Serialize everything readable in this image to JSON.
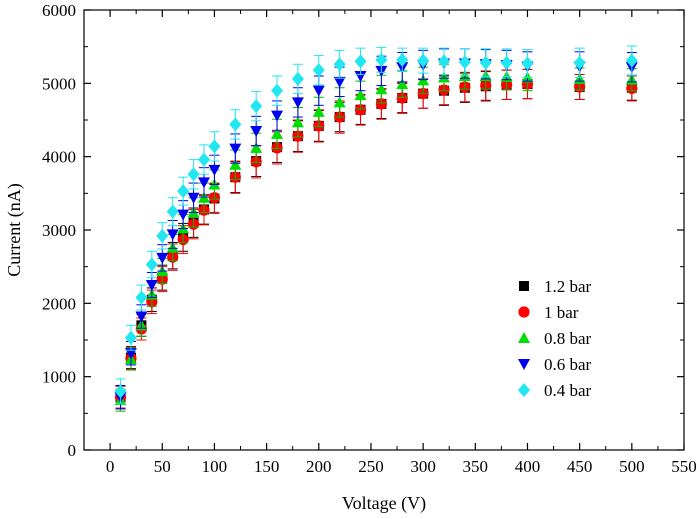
{
  "chart_data": {
    "type": "scatter",
    "title": "",
    "xlabel": "Voltage (V)",
    "ylabel": "Current (nA)",
    "xlim": [
      -25,
      550
    ],
    "ylim": [
      0,
      6000
    ],
    "x_ticks": [
      0,
      50,
      100,
      150,
      200,
      250,
      300,
      350,
      400,
      450,
      500,
      550
    ],
    "y_ticks": [
      0,
      1000,
      2000,
      3000,
      4000,
      5000,
      6000
    ],
    "grid": false,
    "legend_position": "lower-right",
    "error_bars": true,
    "x": [
      10,
      20,
      30,
      40,
      50,
      60,
      70,
      80,
      90,
      100,
      120,
      140,
      160,
      180,
      200,
      220,
      240,
      260,
      280,
      300,
      320,
      340,
      360,
      380,
      400,
      450,
      500
    ],
    "series": [
      {
        "name": "1.2 bar",
        "marker": "square",
        "color": "#000000",
        "error_color": "#000000",
        "values": [
          720,
          1260,
          1700,
          2050,
          2350,
          2650,
          2900,
          3100,
          3280,
          3430,
          3720,
          3940,
          4130,
          4280,
          4420,
          4540,
          4640,
          4720,
          4800,
          4860,
          4900,
          4940,
          4960,
          4980,
          4990,
          4950,
          4940
        ],
        "errors": [
          150,
          150,
          150,
          160,
          170,
          180,
          190,
          200,
          200,
          200,
          210,
          210,
          210,
          210,
          210,
          200,
          200,
          200,
          200,
          200,
          200,
          200,
          200,
          200,
          200,
          170,
          170
        ]
      },
      {
        "name": "1 bar",
        "marker": "circle",
        "color": "#ff0000",
        "error_color": "#ff0000",
        "values": [
          720,
          1250,
          1650,
          2020,
          2330,
          2630,
          2870,
          3080,
          3270,
          3440,
          3720,
          3930,
          4120,
          4280,
          4420,
          4540,
          4640,
          4720,
          4800,
          4860,
          4910,
          4950,
          4970,
          4980,
          4990,
          4950,
          4930
        ],
        "errors": [
          150,
          150,
          150,
          160,
          170,
          180,
          190,
          200,
          200,
          200,
          220,
          220,
          220,
          220,
          220,
          220,
          210,
          210,
          210,
          200,
          200,
          200,
          200,
          200,
          200,
          170,
          170
        ]
      },
      {
        "name": "0.8 bar",
        "marker": "triangle-up",
        "color": "#00dd00",
        "error_color": "#00bb00",
        "values": [
          680,
          1240,
          1700,
          2120,
          2440,
          2760,
          3020,
          3240,
          3440,
          3620,
          3890,
          4120,
          4310,
          4470,
          4610,
          4740,
          4840,
          4920,
          4990,
          5040,
          5080,
          5100,
          5100,
          5090,
          5080,
          5060,
          5050
        ],
        "errors": [
          150,
          150,
          150,
          160,
          170,
          180,
          190,
          200,
          200,
          200,
          200,
          200,
          200,
          200,
          200,
          200,
          190,
          190,
          180,
          180,
          180,
          180,
          180,
          180,
          180,
          150,
          150
        ]
      },
      {
        "name": "0.6 bar",
        "marker": "triangle-down",
        "color": "#0000ee",
        "error_color": "#0000ee",
        "values": [
          720,
          1320,
          1820,
          2250,
          2620,
          2940,
          3210,
          3440,
          3650,
          3820,
          4110,
          4350,
          4560,
          4740,
          4900,
          5020,
          5100,
          5170,
          5220,
          5250,
          5270,
          5270,
          5260,
          5250,
          5230,
          5230,
          5220
        ],
        "errors": [
          160,
          160,
          160,
          170,
          180,
          190,
          190,
          200,
          200,
          200,
          200,
          200,
          200,
          200,
          200,
          200,
          200,
          200,
          200,
          200,
          200,
          200,
          200,
          200,
          200,
          200,
          200
        ]
      },
      {
        "name": "0.4 bar",
        "marker": "diamond",
        "color": "#22e6f0",
        "error_color": "#22e6f0",
        "values": [
          800,
          1530,
          2080,
          2530,
          2920,
          3250,
          3530,
          3760,
          3960,
          4140,
          4440,
          4690,
          4900,
          5060,
          5180,
          5260,
          5300,
          5320,
          5320,
          5310,
          5300,
          5290,
          5280,
          5280,
          5270,
          5280,
          5310
        ],
        "errors": [
          170,
          170,
          170,
          180,
          180,
          190,
          190,
          200,
          200,
          200,
          200,
          200,
          200,
          200,
          200,
          190,
          180,
          170,
          160,
          170,
          180,
          180,
          190,
          190,
          190,
          200,
          200
        ]
      }
    ]
  }
}
